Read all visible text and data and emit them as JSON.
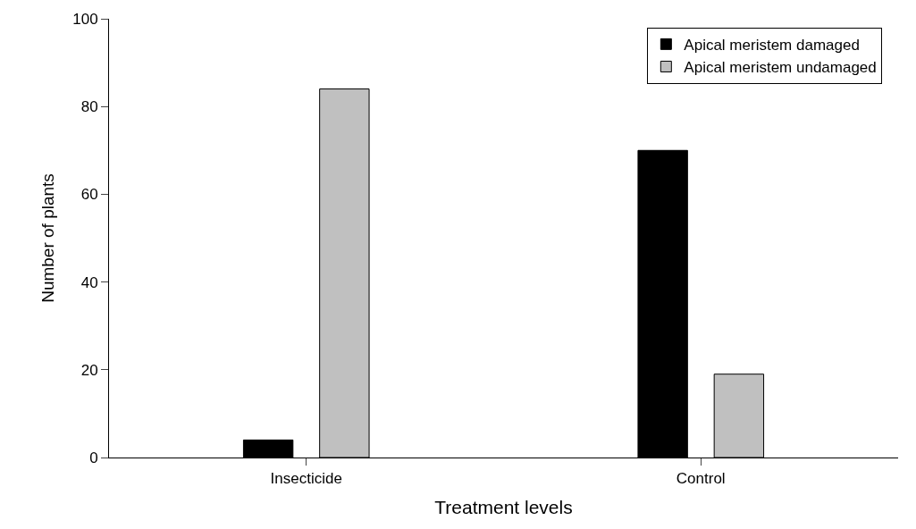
{
  "chart_data": {
    "type": "bar",
    "xlabel": "Treatment levels",
    "ylabel": "Number of plants",
    "categories": [
      "Insecticide",
      "Control"
    ],
    "series": [
      {
        "name": "Apical meristem damaged",
        "color": "#000000",
        "values": [
          4,
          70
        ]
      },
      {
        "name": "Apical meristem undamaged",
        "color": "#c0c0c0",
        "values": [
          84,
          19
        ]
      }
    ],
    "ylim": [
      0,
      100
    ],
    "yticks": [
      0,
      20,
      40,
      60,
      80,
      100
    ],
    "grid": false,
    "legend": "top right"
  }
}
